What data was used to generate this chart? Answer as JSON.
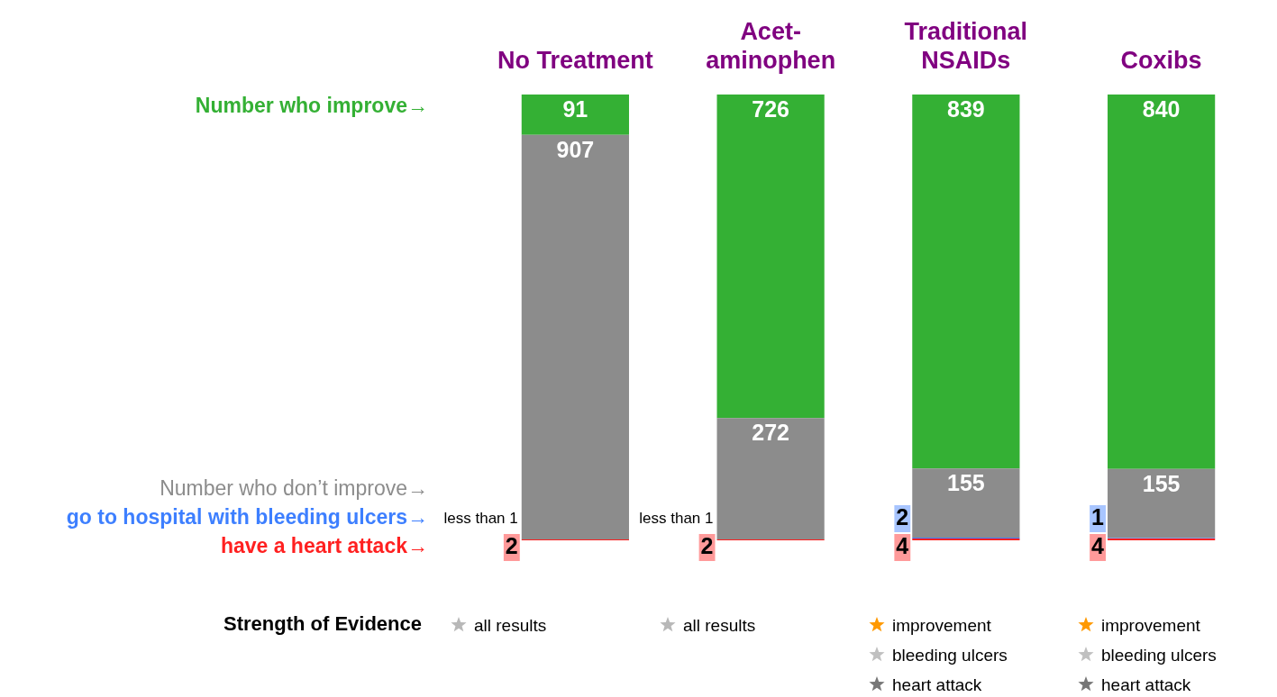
{
  "chart_data": {
    "type": "bar",
    "stacked": true,
    "legend": false,
    "grid": false,
    "categories": [
      "No Treatment",
      "Acet-\naminophen",
      "Traditional\nNSAIDs",
      "Coxibs"
    ],
    "series": [
      {
        "name": "have a heart attack→",
        "color": "#ff2020",
        "values": [
          2,
          2,
          4,
          4
        ],
        "value_labels": [
          "2",
          "2",
          "4",
          "4"
        ]
      },
      {
        "name": "go to hospital with bleeding ulcers→",
        "color": "#3d7fff",
        "values": [
          null,
          null,
          2,
          1
        ],
        "value_labels": [
          "less than 1",
          "less than 1",
          "2",
          "1"
        ]
      },
      {
        "name": "Number who don’t improve→",
        "color": "#8c8c8c",
        "values": [
          907,
          272,
          155,
          155
        ],
        "value_labels": [
          "907",
          "272",
          "155",
          "155"
        ]
      },
      {
        "name": "Number who improve→",
        "color": "#34b034",
        "values": [
          91,
          726,
          839,
          840
        ],
        "value_labels": [
          "91",
          "726",
          "839",
          "840"
        ]
      }
    ],
    "annotations": [
      "Strength of Evidence",
      "all results",
      "all results",
      "improvement",
      "bleeding ulcers",
      "heart attack",
      "improvement",
      "bleeding ulcers",
      "heart attack"
    ]
  }
}
